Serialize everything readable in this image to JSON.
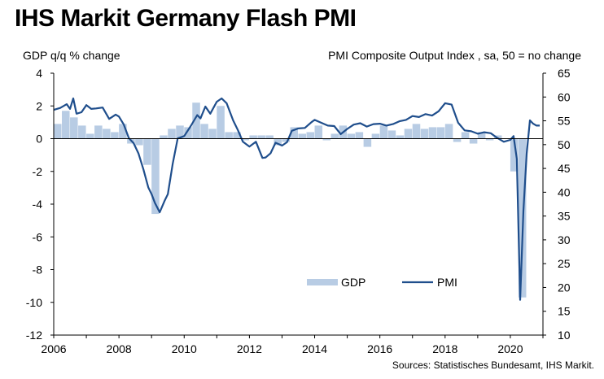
{
  "title": "IHS Markit Germany Flash PMI",
  "source": "Sources: Statistisches Bundesamt, IHS Markit.",
  "colors": {
    "gdp": "#b8cce4",
    "pmi": "#1f4e8c",
    "axis": "#000000"
  },
  "chart_data": {
    "type": "bar+line",
    "title": "IHS Markit Germany Flash PMI",
    "y_left_label": "GDP q/q % change",
    "y_right_label": "PMI Composite  Output Index  , sa, 50 = no change",
    "y_left_lim": [
      -12,
      4
    ],
    "y_left_ticks": [
      4,
      2,
      0,
      -2,
      -4,
      -6,
      -8,
      -10,
      -12
    ],
    "y_right_lim": [
      10,
      65
    ],
    "y_right_ticks": [
      65,
      60,
      55,
      50,
      45,
      40,
      35,
      30,
      25,
      20,
      15,
      10
    ],
    "x_lim": [
      2006,
      2021
    ],
    "x_ticks": [
      2006,
      2008,
      2010,
      2012,
      2014,
      2016,
      2018,
      2020
    ],
    "legend_position": "bottom-center",
    "series": [
      {
        "name": "GDP",
        "kind": "bar",
        "axis": "left",
        "x": [
          2006.0,
          2006.25,
          2006.5,
          2006.75,
          2007.0,
          2007.25,
          2007.5,
          2007.75,
          2008.0,
          2008.25,
          2008.5,
          2008.75,
          2009.0,
          2009.25,
          2009.5,
          2009.75,
          2010.0,
          2010.25,
          2010.5,
          2010.75,
          2011.0,
          2011.25,
          2011.5,
          2011.75,
          2012.0,
          2012.25,
          2012.5,
          2012.75,
          2013.0,
          2013.25,
          2013.5,
          2013.75,
          2014.0,
          2014.25,
          2014.5,
          2014.75,
          2015.0,
          2015.25,
          2015.5,
          2015.75,
          2016.0,
          2016.25,
          2016.5,
          2016.75,
          2017.0,
          2017.25,
          2017.5,
          2017.75,
          2018.0,
          2018.25,
          2018.5,
          2018.75,
          2019.0,
          2019.25,
          2019.5,
          2019.75,
          2020.0,
          2020.25,
          2020.5
        ],
        "values": [
          0.9,
          1.7,
          1.3,
          0.8,
          0.3,
          0.8,
          0.6,
          0.4,
          0.9,
          -0.3,
          -0.4,
          -1.6,
          -4.6,
          0.2,
          0.6,
          0.8,
          0.7,
          2.2,
          0.9,
          0.6,
          2.0,
          0.4,
          0.4,
          -0.1,
          0.2,
          0.2,
          0.2,
          -0.4,
          -0.2,
          0.7,
          0.3,
          0.4,
          0.8,
          -0.1,
          0.3,
          0.8,
          0.3,
          0.4,
          -0.5,
          0.3,
          0.8,
          0.5,
          0.2,
          0.6,
          0.9,
          0.6,
          0.7,
          0.7,
          0.9,
          -0.2,
          0.4,
          -0.3,
          0.4,
          -0.1,
          0.2,
          0.0,
          -2.0,
          -9.7,
          0.0
        ]
      },
      {
        "name": "PMI",
        "kind": "line",
        "axis": "right",
        "x": [
          2006.0,
          2006.2,
          2006.4,
          2006.5,
          2006.6,
          2006.7,
          2006.85,
          2007.0,
          2007.15,
          2007.3,
          2007.5,
          2007.7,
          2007.9,
          2008.0,
          2008.15,
          2008.3,
          2008.45,
          2008.6,
          2008.75,
          2008.9,
          2009.0,
          2009.1,
          2009.25,
          2009.4,
          2009.5,
          2009.65,
          2009.8,
          2010.0,
          2010.2,
          2010.4,
          2010.5,
          2010.65,
          2010.8,
          2011.0,
          2011.15,
          2011.3,
          2011.5,
          2011.65,
          2011.8,
          2012.0,
          2012.2,
          2012.4,
          2012.5,
          2012.65,
          2012.8,
          2013.0,
          2013.15,
          2013.3,
          2013.5,
          2013.7,
          2013.9,
          2014.0,
          2014.2,
          2014.4,
          2014.6,
          2014.8,
          2015.0,
          2015.2,
          2015.4,
          2015.6,
          2015.8,
          2016.0,
          2016.2,
          2016.4,
          2016.6,
          2016.8,
          2017.0,
          2017.2,
          2017.4,
          2017.6,
          2017.8,
          2018.0,
          2018.2,
          2018.4,
          2018.6,
          2018.8,
          2019.0,
          2019.2,
          2019.4,
          2019.6,
          2019.8,
          2020.0,
          2020.1,
          2020.2,
          2020.3,
          2020.4,
          2020.5,
          2020.6,
          2020.7,
          2020.8,
          2020.9
        ],
        "values": [
          57.3,
          57.7,
          58.5,
          57.5,
          59.7,
          56.5,
          56.8,
          58.3,
          57.5,
          57.6,
          57.8,
          55.4,
          56.3,
          55.9,
          54.2,
          51.4,
          50.3,
          48.1,
          44.8,
          41.0,
          39.6,
          37.8,
          35.8,
          38.2,
          39.6,
          46.0,
          51.3,
          51.8,
          53.9,
          56.2,
          55.5,
          58.0,
          56.5,
          59.0,
          59.7,
          58.7,
          55.1,
          53.0,
          50.6,
          49.6,
          50.6,
          47.2,
          47.3,
          48.2,
          50.4,
          49.8,
          50.5,
          52.9,
          53.4,
          53.5,
          54.7,
          55.2,
          54.6,
          54.0,
          53.9,
          52.2,
          53.3,
          54.2,
          54.5,
          53.8,
          54.3,
          54.4,
          54.0,
          54.3,
          54.9,
          55.2,
          56.0,
          55.8,
          56.4,
          56.1,
          57.0,
          58.7,
          58.4,
          54.6,
          53.0,
          52.8,
          52.3,
          52.6,
          52.4,
          51.4,
          50.6,
          51.0,
          51.8,
          47.0,
          17.4,
          36.1,
          48.1,
          55.1,
          54.4,
          54.0,
          54.0
        ]
      }
    ],
    "legend": [
      {
        "name": "GDP"
      },
      {
        "name": "PMI"
      }
    ]
  }
}
